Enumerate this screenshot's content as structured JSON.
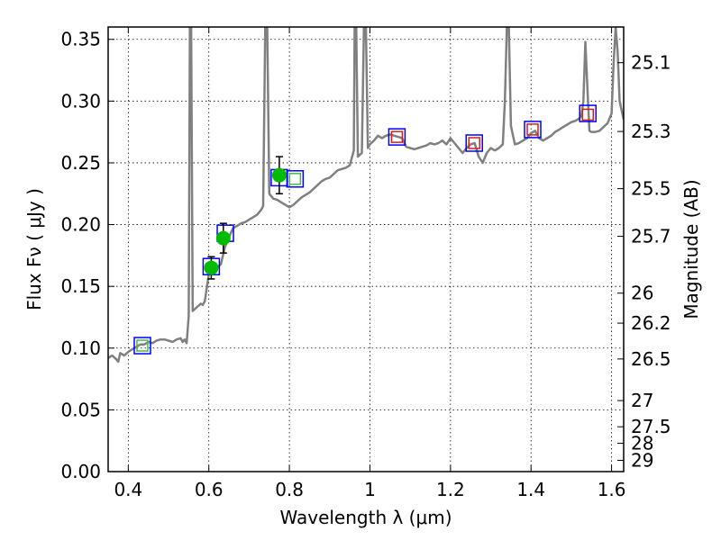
{
  "chart_data": {
    "type": "scatter",
    "xlabel": "Wavelength  λ (μm)",
    "ylabel": "Flux  Fν  ( μJy )",
    "y2label": "Magnitude (AB)",
    "xlim": [
      0.35,
      1.63
    ],
    "ylim": [
      0.0,
      0.36
    ],
    "grid": true,
    "x_ticks": [
      0.4,
      0.6,
      0.8,
      1.0,
      1.2,
      1.4,
      1.6
    ],
    "x_tick_labels": [
      "0.4",
      "0.6",
      "0.8",
      "1",
      "1.2",
      "1.4",
      "1.6"
    ],
    "y_ticks": [
      0.0,
      0.05,
      0.1,
      0.15,
      0.2,
      0.25,
      0.3,
      0.35
    ],
    "y_tick_labels": [
      "0.00",
      "0.05",
      "0.10",
      "0.15",
      "0.20",
      "0.25",
      "0.30",
      "0.35"
    ],
    "y2_ticks": [
      {
        "label": "25.1",
        "flux": 0.3311
      },
      {
        "label": "25.3",
        "flux": 0.2754
      },
      {
        "label": "25.5",
        "flux": 0.2291
      },
      {
        "label": "25.7",
        "flux": 0.1905
      },
      {
        "label": "26",
        "flux": 0.1445
      },
      {
        "label": "26.2",
        "flux": 0.1202
      },
      {
        "label": "26.5",
        "flux": 0.0912
      },
      {
        "label": "27",
        "flux": 0.0575
      },
      {
        "label": "27.5",
        "flux": 0.0363
      },
      {
        "label": "28",
        "flux": 0.0229
      },
      {
        "label": "29",
        "flux": 0.0091
      }
    ],
    "model_spectrum": {
      "color": "#808080",
      "points": [
        [
          0.35,
          0.092
        ],
        [
          0.36,
          0.094
        ],
        [
          0.37,
          0.091
        ],
        [
          0.375,
          0.089
        ],
        [
          0.38,
          0.096
        ],
        [
          0.39,
          0.094
        ],
        [
          0.4,
          0.097
        ],
        [
          0.41,
          0.099
        ],
        [
          0.42,
          0.101
        ],
        [
          0.43,
          0.103
        ],
        [
          0.44,
          0.103
        ],
        [
          0.45,
          0.105
        ],
        [
          0.46,
          0.104
        ],
        [
          0.47,
          0.106
        ],
        [
          0.48,
          0.107
        ],
        [
          0.49,
          0.107
        ],
        [
          0.5,
          0.106
        ],
        [
          0.51,
          0.105
        ],
        [
          0.52,
          0.107
        ],
        [
          0.53,
          0.108
        ],
        [
          0.535,
          0.105
        ],
        [
          0.54,
          0.107
        ],
        [
          0.545,
          0.104
        ],
        [
          0.55,
          0.126
        ],
        [
          0.553,
          0.36
        ],
        [
          0.556,
          0.36
        ],
        [
          0.56,
          0.13
        ],
        [
          0.57,
          0.133
        ],
        [
          0.58,
          0.136
        ],
        [
          0.585,
          0.135
        ],
        [
          0.59,
          0.138
        ],
        [
          0.6,
          0.16
        ],
        [
          0.605,
          0.163
        ],
        [
          0.61,
          0.161
        ],
        [
          0.62,
          0.165
        ],
        [
          0.63,
          0.168
        ],
        [
          0.64,
          0.182
        ],
        [
          0.65,
          0.19
        ],
        [
          0.66,
          0.197
        ],
        [
          0.67,
          0.199
        ],
        [
          0.68,
          0.201
        ],
        [
          0.69,
          0.202
        ],
        [
          0.7,
          0.204
        ],
        [
          0.71,
          0.206
        ],
        [
          0.72,
          0.208
        ],
        [
          0.73,
          0.212
        ],
        [
          0.735,
          0.215
        ],
        [
          0.74,
          0.36
        ],
        [
          0.745,
          0.36
        ],
        [
          0.75,
          0.225
        ],
        [
          0.76,
          0.221
        ],
        [
          0.77,
          0.22
        ],
        [
          0.78,
          0.218
        ],
        [
          0.79,
          0.216
        ],
        [
          0.8,
          0.214
        ],
        [
          0.81,
          0.216
        ],
        [
          0.82,
          0.219
        ],
        [
          0.83,
          0.222
        ],
        [
          0.84,
          0.224
        ],
        [
          0.85,
          0.226
        ],
        [
          0.86,
          0.229
        ],
        [
          0.87,
          0.232
        ],
        [
          0.88,
          0.235
        ],
        [
          0.89,
          0.237
        ],
        [
          0.9,
          0.238
        ],
        [
          0.91,
          0.241
        ],
        [
          0.92,
          0.244
        ],
        [
          0.93,
          0.245
        ],
        [
          0.94,
          0.246
        ],
        [
          0.95,
          0.248
        ],
        [
          0.96,
          0.26
        ],
        [
          0.962,
          0.36
        ],
        [
          0.966,
          0.36
        ],
        [
          0.97,
          0.255
        ],
        [
          0.98,
          0.258
        ],
        [
          0.985,
          0.36
        ],
        [
          0.99,
          0.36
        ],
        [
          0.995,
          0.262
        ],
        [
          1.0,
          0.265
        ],
        [
          1.01,
          0.268
        ],
        [
          1.02,
          0.272
        ],
        [
          1.03,
          0.27
        ],
        [
          1.04,
          0.272
        ],
        [
          1.05,
          0.273
        ],
        [
          1.06,
          0.272
        ],
        [
          1.07,
          0.271
        ],
        [
          1.08,
          0.27
        ],
        [
          1.09,
          0.263
        ],
        [
          1.1,
          0.262
        ],
        [
          1.11,
          0.261
        ],
        [
          1.12,
          0.262
        ],
        [
          1.13,
          0.263
        ],
        [
          1.14,
          0.264
        ],
        [
          1.15,
          0.266
        ],
        [
          1.16,
          0.265
        ],
        [
          1.17,
          0.266
        ],
        [
          1.18,
          0.268
        ],
        [
          1.19,
          0.265
        ],
        [
          1.2,
          0.27
        ],
        [
          1.21,
          0.266
        ],
        [
          1.22,
          0.262
        ],
        [
          1.23,
          0.258
        ],
        [
          1.24,
          0.262
        ],
        [
          1.25,
          0.265
        ],
        [
          1.26,
          0.266
        ],
        [
          1.27,
          0.255
        ],
        [
          1.28,
          0.25
        ],
        [
          1.29,
          0.258
        ],
        [
          1.3,
          0.262
        ],
        [
          1.31,
          0.26
        ],
        [
          1.32,
          0.262
        ],
        [
          1.33,
          0.265
        ],
        [
          1.335,
          0.3
        ],
        [
          1.34,
          0.36
        ],
        [
          1.345,
          0.36
        ],
        [
          1.35,
          0.28
        ],
        [
          1.36,
          0.265
        ],
        [
          1.37,
          0.266
        ],
        [
          1.38,
          0.268
        ],
        [
          1.39,
          0.27
        ],
        [
          1.4,
          0.274
        ],
        [
          1.41,
          0.276
        ],
        [
          1.42,
          0.27
        ],
        [
          1.43,
          0.268
        ],
        [
          1.44,
          0.27
        ],
        [
          1.45,
          0.272
        ],
        [
          1.46,
          0.275
        ],
        [
          1.47,
          0.277
        ],
        [
          1.48,
          0.279
        ],
        [
          1.49,
          0.281
        ],
        [
          1.5,
          0.283
        ],
        [
          1.51,
          0.284
        ],
        [
          1.52,
          0.286
        ],
        [
          1.525,
          0.288
        ],
        [
          1.53,
          0.3
        ],
        [
          1.535,
          0.348
        ],
        [
          1.54,
          0.31
        ],
        [
          1.545,
          0.276
        ],
        [
          1.55,
          0.275
        ],
        [
          1.56,
          0.275
        ],
        [
          1.57,
          0.276
        ],
        [
          1.58,
          0.279
        ],
        [
          1.59,
          0.282
        ],
        [
          1.6,
          0.29
        ],
        [
          1.605,
          0.33
        ],
        [
          1.61,
          0.36
        ],
        [
          1.615,
          0.34
        ],
        [
          1.62,
          0.3
        ],
        [
          1.63,
          0.285
        ]
      ]
    },
    "measured": {
      "color": "#00bb00",
      "points": [
        {
          "x": 0.606,
          "y": 0.165,
          "yerr": 0.009
        },
        {
          "x": 0.636,
          "y": 0.189,
          "yerr": 0.012
        },
        {
          "x": 0.775,
          "y": 0.24,
          "yerr": 0.015
        }
      ]
    },
    "blue_squares": {
      "color": "#0000ff",
      "points": [
        {
          "x": 0.435,
          "y": 0.102
        },
        {
          "x": 0.606,
          "y": 0.166
        },
        {
          "x": 0.641,
          "y": 0.193
        },
        {
          "x": 0.775,
          "y": 0.238
        },
        {
          "x": 0.814,
          "y": 0.237
        },
        {
          "x": 1.067,
          "y": 0.271
        },
        {
          "x": 1.259,
          "y": 0.266
        },
        {
          "x": 1.404,
          "y": 0.277
        },
        {
          "x": 1.541,
          "y": 0.29
        }
      ]
    },
    "green_squares": {
      "color": "#44bb44",
      "points": [
        {
          "x": 0.435,
          "y": 0.102
        },
        {
          "x": 0.814,
          "y": 0.237
        }
      ]
    },
    "red_squares": {
      "color": "#cc2222",
      "points": [
        {
          "x": 1.067,
          "y": 0.271
        },
        {
          "x": 1.259,
          "y": 0.266
        },
        {
          "x": 1.404,
          "y": 0.277
        },
        {
          "x": 1.541,
          "y": 0.289
        }
      ]
    }
  }
}
